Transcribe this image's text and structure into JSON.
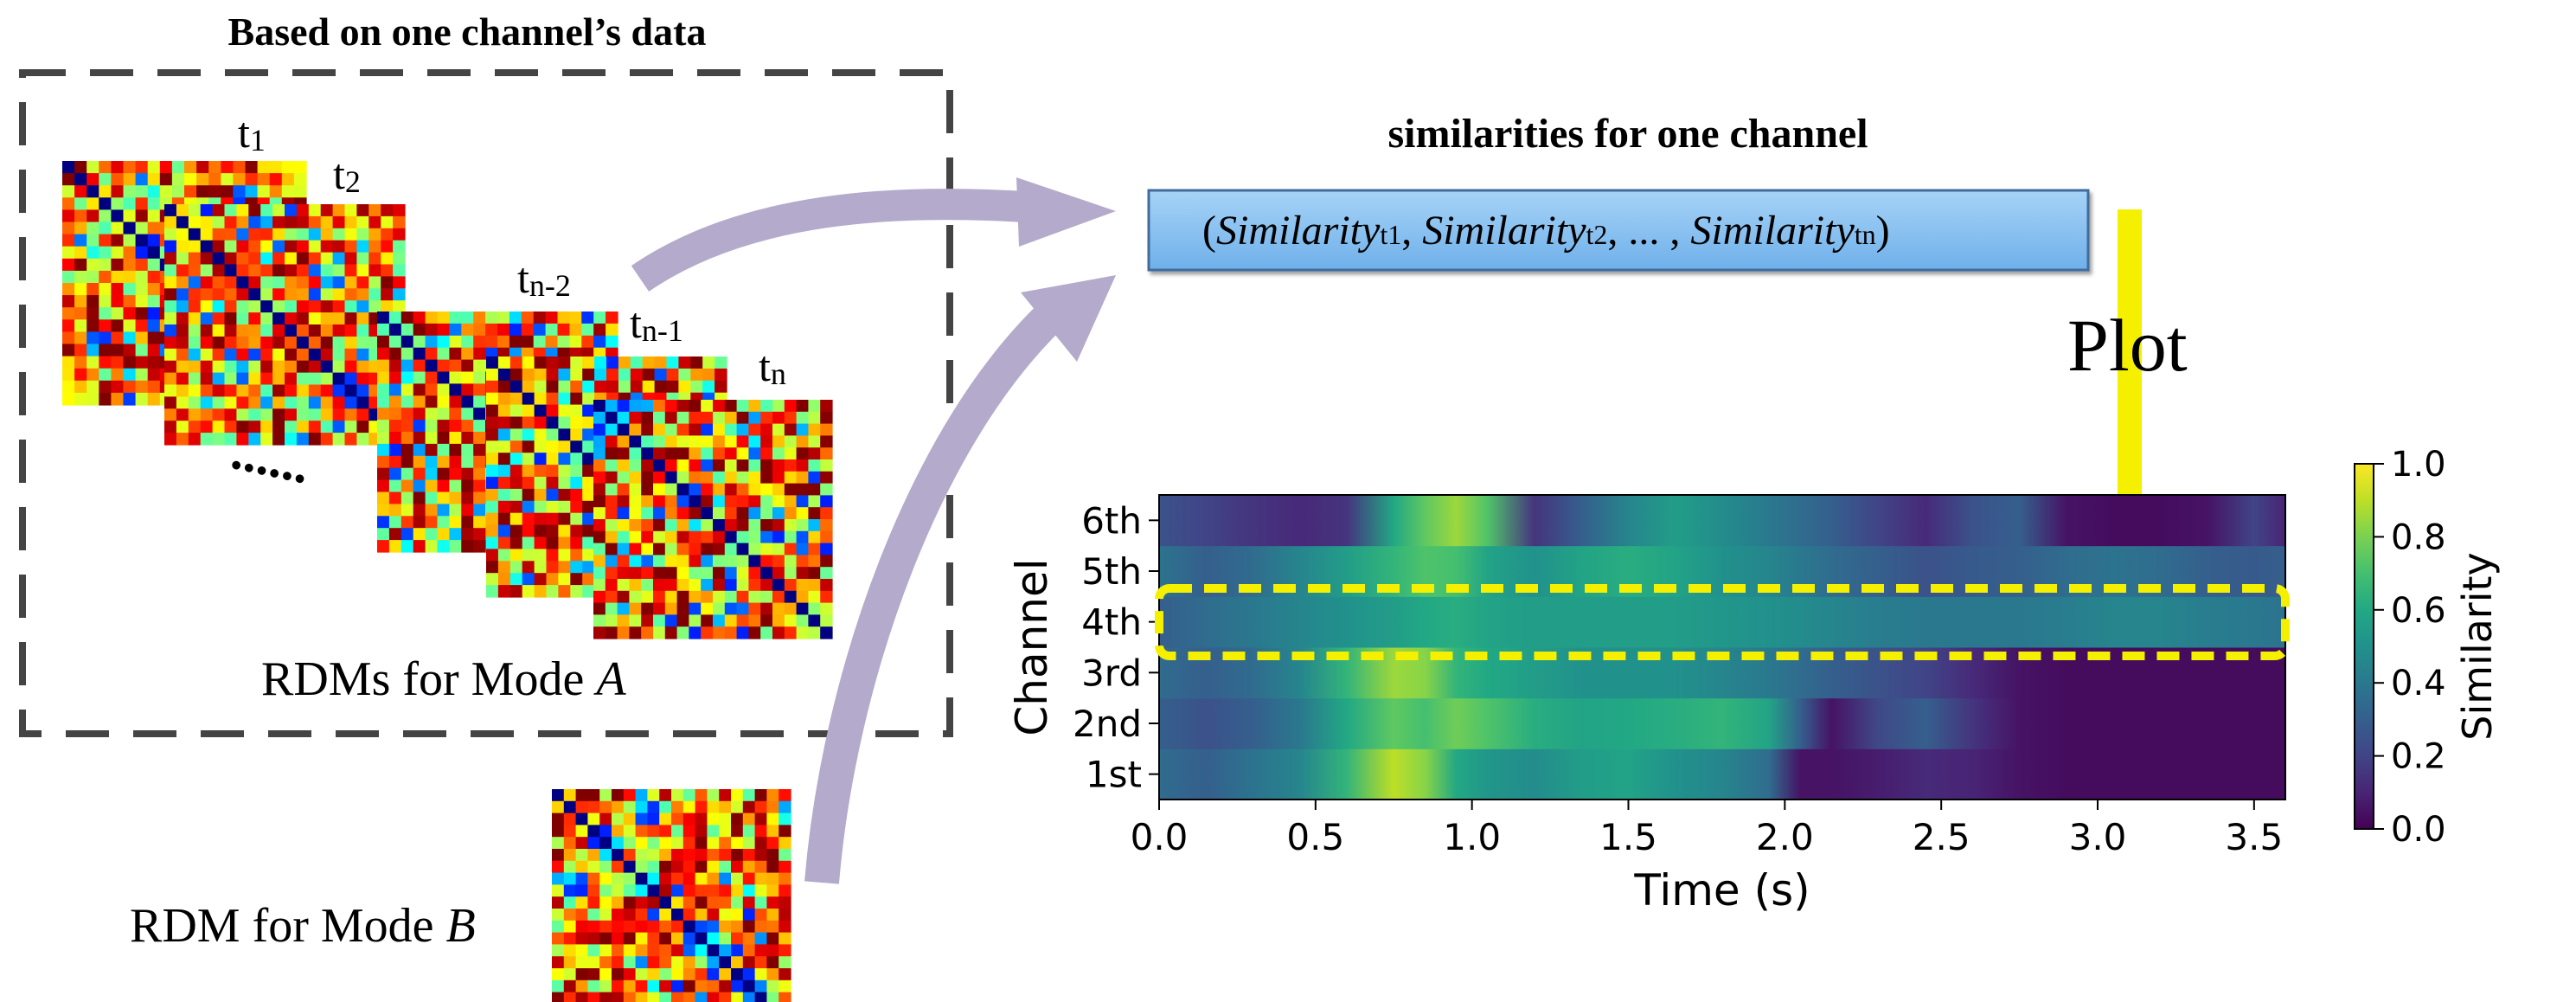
{
  "panel_left": {
    "title": "Based on one channel’s data",
    "rdm_labels": [
      {
        "base": "t",
        "sub": "1"
      },
      {
        "base": "t",
        "sub": "2"
      },
      {
        "base": "t",
        "sub": "n-2"
      },
      {
        "base": "t",
        "sub": "n-1"
      },
      {
        "base": "t",
        "sub": "n"
      }
    ],
    "ellipsis": "......",
    "caption_prefix": "RDMs for Mode ",
    "caption_mode": "A"
  },
  "rdm_b": {
    "caption_prefix": "RDM for Mode ",
    "caption_mode": "B"
  },
  "similarity_box": {
    "title": "similarities for one channel",
    "open": "(",
    "close": ")",
    "word": "Similarity",
    "subs": [
      "t1",
      "t2",
      "tn"
    ],
    "separator": ", ",
    "dots": "... ,",
    "fill_color": "#8ec4f2",
    "border_color": "#3f6d9e"
  },
  "plot_arrow": {
    "label": "Plot",
    "color": "#f5f000"
  },
  "curved_arrow_color": "#b4aacb",
  "chart_data": {
    "type": "heatmap",
    "title": "",
    "xlabel": "Time (s)",
    "ylabel": "Channel",
    "xlim": [
      0.0,
      3.6
    ],
    "x_ticks": [
      "0.0",
      "0.5",
      "1.0",
      "1.5",
      "2.0",
      "2.5",
      "3.0",
      "3.5"
    ],
    "x_tick_values": [
      0.0,
      0.5,
      1.0,
      1.5,
      2.0,
      2.5,
      3.0,
      3.5
    ],
    "channels": [
      "1st",
      "2nd",
      "3rd",
      "4th",
      "5th",
      "6th"
    ],
    "colorbar": {
      "label": "Similarity",
      "ticks": [
        "0.0",
        "0.2",
        "0.4",
        "0.6",
        "0.8",
        "1.0"
      ],
      "range": [
        0,
        1
      ],
      "colormap": "viridis"
    },
    "highlight_channel": "4th",
    "highlight_color": "#f5f000",
    "time_points": [
      0.0,
      0.15,
      0.3,
      0.45,
      0.6,
      0.75,
      0.85,
      0.95,
      1.05,
      1.2,
      1.35,
      1.5,
      1.65,
      1.8,
      1.95,
      2.05,
      2.15,
      2.3,
      2.45,
      2.6,
      2.75,
      2.9,
      3.05,
      3.2,
      3.35,
      3.5,
      3.6
    ],
    "series": [
      {
        "name": "1st",
        "values": [
          0.35,
          0.3,
          0.38,
          0.45,
          0.65,
          0.9,
          0.82,
          0.6,
          0.52,
          0.48,
          0.55,
          0.58,
          0.5,
          0.45,
          0.35,
          0.05,
          0.05,
          0.08,
          0.12,
          0.1,
          0.05,
          0.03,
          0.03,
          0.03,
          0.03,
          0.03,
          0.03
        ]
      },
      {
        "name": "2nd",
        "values": [
          0.3,
          0.25,
          0.3,
          0.4,
          0.6,
          0.75,
          0.7,
          0.78,
          0.72,
          0.62,
          0.58,
          0.6,
          0.62,
          0.65,
          0.58,
          0.3,
          0.05,
          0.22,
          0.3,
          0.15,
          0.05,
          0.03,
          0.03,
          0.03,
          0.03,
          0.03,
          0.03
        ]
      },
      {
        "name": "3rd",
        "values": [
          0.35,
          0.3,
          0.35,
          0.45,
          0.65,
          0.85,
          0.82,
          0.65,
          0.6,
          0.55,
          0.5,
          0.5,
          0.5,
          0.45,
          0.4,
          0.35,
          0.3,
          0.25,
          0.2,
          0.12,
          0.05,
          0.03,
          0.03,
          0.03,
          0.03,
          0.03,
          0.03
        ]
      },
      {
        "name": "4th",
        "values": [
          0.3,
          0.35,
          0.4,
          0.45,
          0.5,
          0.55,
          0.6,
          0.62,
          0.58,
          0.55,
          0.55,
          0.55,
          0.55,
          0.52,
          0.5,
          0.48,
          0.45,
          0.42,
          0.4,
          0.4,
          0.4,
          0.42,
          0.45,
          0.45,
          0.42,
          0.4,
          0.38
        ]
      },
      {
        "name": "5th",
        "values": [
          0.38,
          0.3,
          0.35,
          0.45,
          0.55,
          0.65,
          0.72,
          0.7,
          0.58,
          0.5,
          0.58,
          0.62,
          0.58,
          0.5,
          0.45,
          0.4,
          0.35,
          0.3,
          0.25,
          0.28,
          0.3,
          0.35,
          0.38,
          0.35,
          0.3,
          0.28,
          0.3
        ]
      },
      {
        "name": "6th",
        "values": [
          0.25,
          0.2,
          0.15,
          0.12,
          0.15,
          0.6,
          0.75,
          0.85,
          0.72,
          0.15,
          0.3,
          0.45,
          0.55,
          0.48,
          0.4,
          0.35,
          0.3,
          0.2,
          0.12,
          0.25,
          0.3,
          0.05,
          0.03,
          0.03,
          0.05,
          0.2,
          0.1
        ]
      }
    ]
  }
}
